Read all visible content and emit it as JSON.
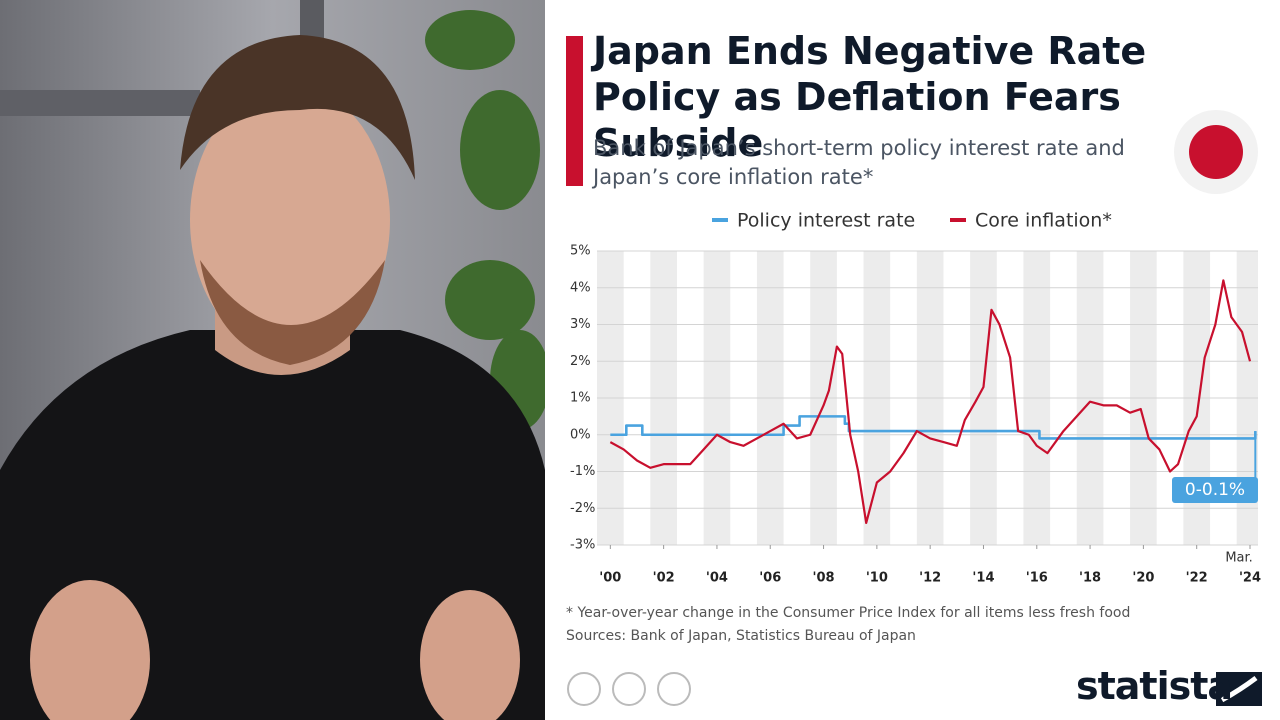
{
  "chart_data": {
    "type": "line",
    "title": "Japan Ends Negative Rate Policy as Deflation Fears Subside",
    "subtitle": "Bank of Japan’s short-term policy interest rate and Japan’s core inflation rate*",
    "footnote": "* Year-over-year change in the Consumer Price Index for all items less fresh food",
    "source": "Sources: Bank of Japan, Statistics Bureau of Japan",
    "brand": "statista",
    "annotations": {
      "end_label": "0-0.1%",
      "end_month": "Mar."
    },
    "xlim": [
      1999.5,
      2024.3
    ],
    "xticks": [
      {
        "value": 2000,
        "label": "'00"
      },
      {
        "value": 2002,
        "label": "'02"
      },
      {
        "value": 2004,
        "label": "'04"
      },
      {
        "value": 2006,
        "label": "'06"
      },
      {
        "value": 2008,
        "label": "'08"
      },
      {
        "value": 2010,
        "label": "'10"
      },
      {
        "value": 2012,
        "label": "'12"
      },
      {
        "value": 2014,
        "label": "'14"
      },
      {
        "value": 2016,
        "label": "'16"
      },
      {
        "value": 2018,
        "label": "'18"
      },
      {
        "value": 2020,
        "label": "'20"
      },
      {
        "value": 2022,
        "label": "'22"
      },
      {
        "value": 2024,
        "label": "'24"
      }
    ],
    "ylim": [
      -3,
      5
    ],
    "yticks": [
      {
        "value": -3,
        "label": "-3%"
      },
      {
        "value": -2,
        "label": "-2%"
      },
      {
        "value": -1,
        "label": "-1%"
      },
      {
        "value": 0,
        "label": "0%"
      },
      {
        "value": 1,
        "label": "1%"
      },
      {
        "value": 2,
        "label": "2%"
      },
      {
        "value": 3,
        "label": "3%"
      },
      {
        "value": 4,
        "label": "4%"
      },
      {
        "value": 5,
        "label": "5%"
      }
    ],
    "grid": true,
    "series": [
      {
        "name": "Policy interest rate",
        "color": "#4aa3df",
        "x": [
          2000,
          2000.6,
          2000.6,
          2001.2,
          2001.2,
          2006.5,
          2006.5,
          2007.1,
          2007.1,
          2008.8,
          2008.8,
          2008.95,
          2008.95,
          2016.1,
          2016.1,
          2024.2,
          2024.2
        ],
        "values": [
          0,
          0,
          0.25,
          0.25,
          0,
          0,
          0.25,
          0.25,
          0.5,
          0.5,
          0.3,
          0.3,
          0.1,
          0.1,
          -0.1,
          -0.1,
          0.1
        ]
      },
      {
        "name": "Core inflation*",
        "color": "#c8102e",
        "x": [
          2000,
          2000.5,
          2001,
          2001.5,
          2002,
          2002.5,
          2003,
          2003.5,
          2004,
          2004.5,
          2005,
          2005.5,
          2006,
          2006.5,
          2007,
          2007.5,
          2008,
          2008.2,
          2008.5,
          2008.7,
          2009,
          2009.3,
          2009.6,
          2010,
          2010.5,
          2011,
          2011.5,
          2012,
          2012.5,
          2013,
          2013.3,
          2013.7,
          2014,
          2014.3,
          2014.6,
          2015,
          2015.3,
          2015.7,
          2016,
          2016.4,
          2017,
          2017.5,
          2018,
          2018.5,
          2019,
          2019.5,
          2019.9,
          2020.2,
          2020.6,
          2021,
          2021.3,
          2021.7,
          2022,
          2022.3,
          2022.7,
          2023,
          2023.3,
          2023.7,
          2024
        ],
        "values": [
          -0.2,
          -0.4,
          -0.7,
          -0.9,
          -0.8,
          -0.8,
          -0.8,
          -0.4,
          0.0,
          -0.2,
          -0.3,
          -0.1,
          0.1,
          0.3,
          -0.1,
          0.0,
          0.8,
          1.2,
          2.4,
          2.2,
          0.0,
          -1.0,
          -2.4,
          -1.3,
          -1.0,
          -0.5,
          0.1,
          -0.1,
          -0.2,
          -0.3,
          0.4,
          0.9,
          1.3,
          3.4,
          3.0,
          2.1,
          0.1,
          0.0,
          -0.3,
          -0.5,
          0.1,
          0.5,
          0.9,
          0.8,
          0.8,
          0.6,
          0.7,
          -0.1,
          -0.4,
          -1.0,
          -0.8,
          0.1,
          0.5,
          2.1,
          3.0,
          4.2,
          3.2,
          2.8,
          2.0
        ]
      }
    ]
  }
}
